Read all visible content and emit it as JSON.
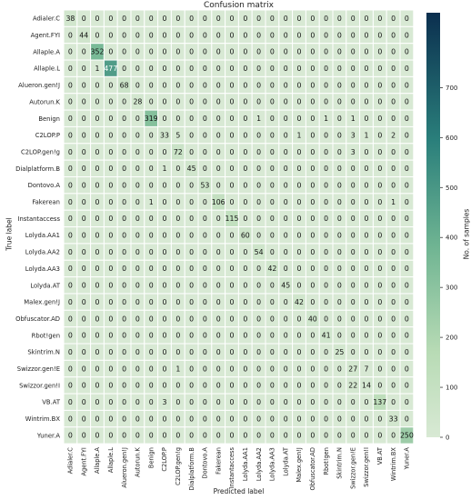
{
  "chart_data": {
    "type": "heatmap",
    "title": "Confusion matrix",
    "xlabel": "Predicted label",
    "ylabel": "True label",
    "colorbar_label": "No. of samples",
    "colorbar_range": [
      0,
      850
    ],
    "colorbar_ticks": [
      0,
      100,
      200,
      300,
      400,
      500,
      600,
      700
    ],
    "colormap": {
      "low": "#d8e9d4",
      "high": "#0b2f4f"
    },
    "labels": [
      "Adialer.C",
      "Agent.FYI",
      "Allaple.A",
      "Allaple.L",
      "Alueron.gen!J",
      "Autorun.K",
      "Benign",
      "C2LOP.P",
      "C2LOP.gen!g",
      "Dialplatform.B",
      "Dontovo.A",
      "Fakerean",
      "Instantaccess",
      "Lolyda.AA1",
      "Lolyda.AA2",
      "Lolyda.AA3",
      "Lolyda.AT",
      "Malex.gen!J",
      "Obfuscator.AD",
      "Rbot!gen",
      "Skintrim.N",
      "Swizzor.gen!E",
      "Swizzor.gen!I",
      "VB.AT",
      "Wintrim.BX",
      "Yuner.A"
    ],
    "matrix": [
      [
        38,
        0,
        0,
        0,
        0,
        0,
        0,
        0,
        0,
        0,
        0,
        0,
        0,
        0,
        0,
        0,
        0,
        0,
        0,
        0,
        0,
        0,
        0,
        0,
        0,
        0
      ],
      [
        0,
        44,
        0,
        0,
        0,
        0,
        0,
        0,
        0,
        0,
        0,
        0,
        0,
        0,
        0,
        0,
        0,
        0,
        0,
        0,
        0,
        0,
        0,
        0,
        0,
        0
      ],
      [
        0,
        0,
        352,
        0,
        0,
        0,
        0,
        0,
        0,
        0,
        0,
        0,
        0,
        0,
        0,
        0,
        0,
        0,
        0,
        0,
        0,
        0,
        0,
        0,
        0,
        0
      ],
      [
        0,
        0,
        1,
        477,
        0,
        0,
        0,
        0,
        0,
        0,
        0,
        0,
        0,
        0,
        0,
        0,
        0,
        0,
        0,
        0,
        0,
        0,
        0,
        0,
        0,
        0
      ],
      [
        0,
        0,
        0,
        0,
        68,
        0,
        0,
        0,
        0,
        0,
        0,
        0,
        0,
        0,
        0,
        0,
        0,
        0,
        0,
        0,
        0,
        0,
        0,
        0,
        0,
        0
      ],
      [
        0,
        0,
        0,
        0,
        0,
        28,
        0,
        0,
        0,
        0,
        0,
        0,
        0,
        0,
        0,
        0,
        0,
        0,
        0,
        0,
        0,
        0,
        0,
        0,
        0,
        0
      ],
      [
        0,
        0,
        0,
        0,
        0,
        0,
        319,
        0,
        0,
        0,
        0,
        0,
        0,
        0,
        1,
        0,
        0,
        0,
        0,
        1,
        0,
        1,
        0,
        0,
        0,
        0
      ],
      [
        0,
        0,
        0,
        0,
        0,
        0,
        0,
        33,
        5,
        0,
        0,
        0,
        0,
        0,
        0,
        0,
        0,
        1,
        0,
        0,
        0,
        3,
        1,
        0,
        2,
        0
      ],
      [
        0,
        0,
        0,
        0,
        0,
        0,
        0,
        0,
        72,
        0,
        0,
        0,
        0,
        0,
        0,
        0,
        0,
        0,
        0,
        0,
        0,
        3,
        0,
        0,
        0,
        0
      ],
      [
        0,
        0,
        0,
        0,
        0,
        0,
        0,
        1,
        0,
        45,
        0,
        0,
        0,
        0,
        0,
        0,
        0,
        0,
        0,
        0,
        0,
        0,
        0,
        0,
        0,
        0
      ],
      [
        0,
        0,
        0,
        0,
        0,
        0,
        0,
        0,
        0,
        0,
        53,
        0,
        0,
        0,
        0,
        0,
        0,
        0,
        0,
        0,
        0,
        0,
        0,
        0,
        0,
        0
      ],
      [
        0,
        0,
        0,
        0,
        0,
        0,
        1,
        0,
        0,
        0,
        0,
        106,
        0,
        0,
        0,
        0,
        0,
        0,
        0,
        0,
        0,
        0,
        0,
        0,
        1,
        0
      ],
      [
        0,
        0,
        0,
        0,
        0,
        0,
        0,
        0,
        0,
        0,
        0,
        0,
        115,
        0,
        0,
        0,
        0,
        0,
        0,
        0,
        0,
        0,
        0,
        0,
        0,
        0
      ],
      [
        0,
        0,
        0,
        0,
        0,
        0,
        0,
        0,
        0,
        0,
        0,
        0,
        0,
        60,
        0,
        0,
        0,
        0,
        0,
        0,
        0,
        0,
        0,
        0,
        0,
        0
      ],
      [
        0,
        0,
        0,
        0,
        0,
        0,
        0,
        0,
        0,
        0,
        0,
        0,
        0,
        0,
        54,
        0,
        0,
        0,
        0,
        0,
        0,
        0,
        0,
        0,
        0,
        0
      ],
      [
        0,
        0,
        0,
        0,
        0,
        0,
        0,
        0,
        0,
        0,
        0,
        0,
        0,
        0,
        0,
        42,
        0,
        0,
        0,
        0,
        0,
        0,
        0,
        0,
        0,
        0
      ],
      [
        0,
        0,
        0,
        0,
        0,
        0,
        0,
        0,
        0,
        0,
        0,
        0,
        0,
        0,
        0,
        0,
        45,
        0,
        0,
        0,
        0,
        0,
        0,
        0,
        0,
        0
      ],
      [
        0,
        0,
        0,
        0,
        0,
        0,
        0,
        0,
        0,
        0,
        0,
        0,
        0,
        0,
        0,
        0,
        0,
        42,
        0,
        0,
        0,
        0,
        0,
        0,
        0,
        0
      ],
      [
        0,
        0,
        0,
        0,
        0,
        0,
        0,
        0,
        0,
        0,
        0,
        0,
        0,
        0,
        0,
        0,
        0,
        0,
        40,
        0,
        0,
        0,
        0,
        0,
        0,
        0
      ],
      [
        0,
        0,
        0,
        0,
        0,
        0,
        0,
        0,
        0,
        0,
        0,
        0,
        0,
        0,
        0,
        0,
        0,
        0,
        0,
        41,
        0,
        0,
        0,
        0,
        0,
        0
      ],
      [
        0,
        0,
        0,
        0,
        0,
        0,
        0,
        0,
        0,
        0,
        0,
        0,
        0,
        0,
        0,
        0,
        0,
        0,
        0,
        0,
        25,
        0,
        0,
        0,
        0,
        0
      ],
      [
        0,
        0,
        0,
        0,
        0,
        0,
        0,
        0,
        1,
        0,
        0,
        0,
        0,
        0,
        0,
        0,
        0,
        0,
        0,
        0,
        0,
        27,
        7,
        0,
        0,
        0
      ],
      [
        0,
        0,
        0,
        0,
        0,
        0,
        0,
        0,
        0,
        0,
        0,
        0,
        0,
        0,
        0,
        0,
        0,
        0,
        0,
        0,
        0,
        22,
        14,
        0,
        0,
        0
      ],
      [
        0,
        0,
        0,
        0,
        0,
        0,
        0,
        3,
        0,
        0,
        0,
        0,
        0,
        0,
        0,
        0,
        0,
        0,
        0,
        0,
        0,
        0,
        0,
        137,
        0,
        0
      ],
      [
        0,
        0,
        0,
        0,
        0,
        0,
        0,
        0,
        0,
        0,
        0,
        0,
        0,
        0,
        0,
        0,
        0,
        0,
        0,
        0,
        0,
        0,
        0,
        0,
        33,
        0
      ],
      [
        0,
        0,
        0,
        0,
        0,
        0,
        0,
        0,
        0,
        0,
        0,
        0,
        0,
        0,
        0,
        0,
        0,
        0,
        0,
        0,
        0,
        0,
        0,
        0,
        0,
        250
      ]
    ]
  }
}
